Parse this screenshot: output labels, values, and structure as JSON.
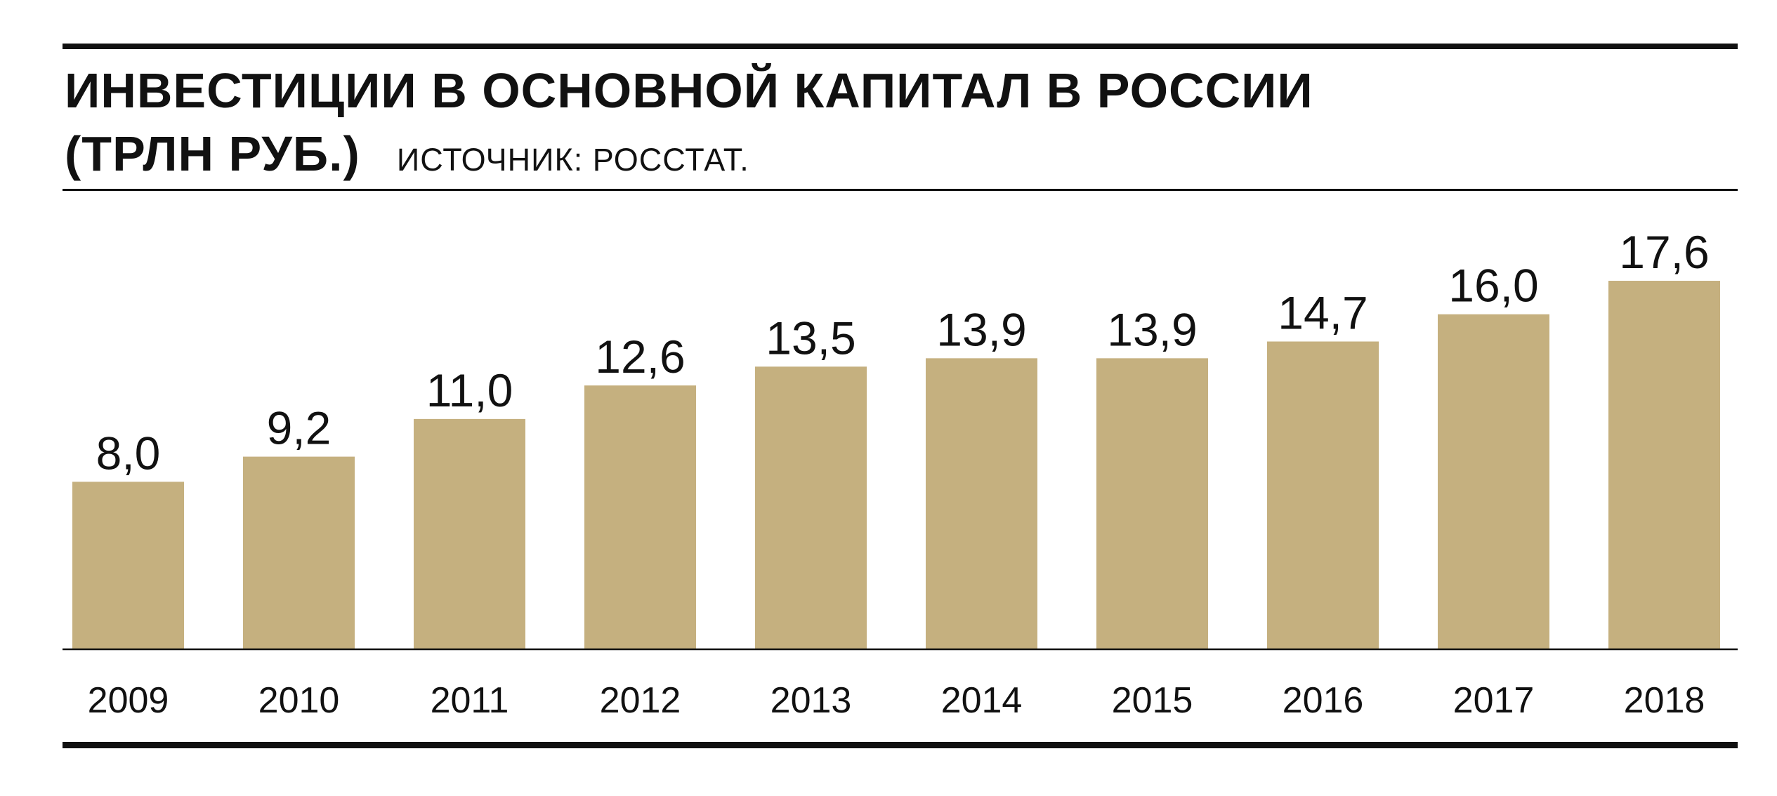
{
  "header": {
    "title": "ИНВЕСТИЦИИ В ОСНОВНОЙ КАПИТАЛ В РОССИИ",
    "unit": "(ТРЛН РУБ.)",
    "source": "ИСТОЧНИК: РОССТАТ."
  },
  "colors": {
    "bar": "#c5b07f",
    "text": "#111111",
    "rules": "#111111"
  },
  "chart_data": {
    "type": "bar",
    "title": "ИНВЕСТИЦИИ В ОСНОВНОЙ КАПИТАЛ В РОССИИ",
    "subtitle": "(ТРЛН РУБ.)",
    "xlabel": "",
    "ylabel": "",
    "categories": [
      "2009",
      "2010",
      "2011",
      "2012",
      "2013",
      "2014",
      "2015",
      "2016",
      "2017",
      "2018"
    ],
    "values": [
      8.0,
      9.2,
      11.0,
      12.6,
      13.5,
      13.9,
      13.9,
      14.7,
      16.0,
      17.6
    ],
    "value_labels": [
      "8,0",
      "9,2",
      "11,0",
      "12,6",
      "13,5",
      "13,9",
      "13,9",
      "14,7",
      "16,0",
      "17,6"
    ],
    "ylim": [
      0,
      17.6
    ],
    "grid": false,
    "legend": "none"
  }
}
